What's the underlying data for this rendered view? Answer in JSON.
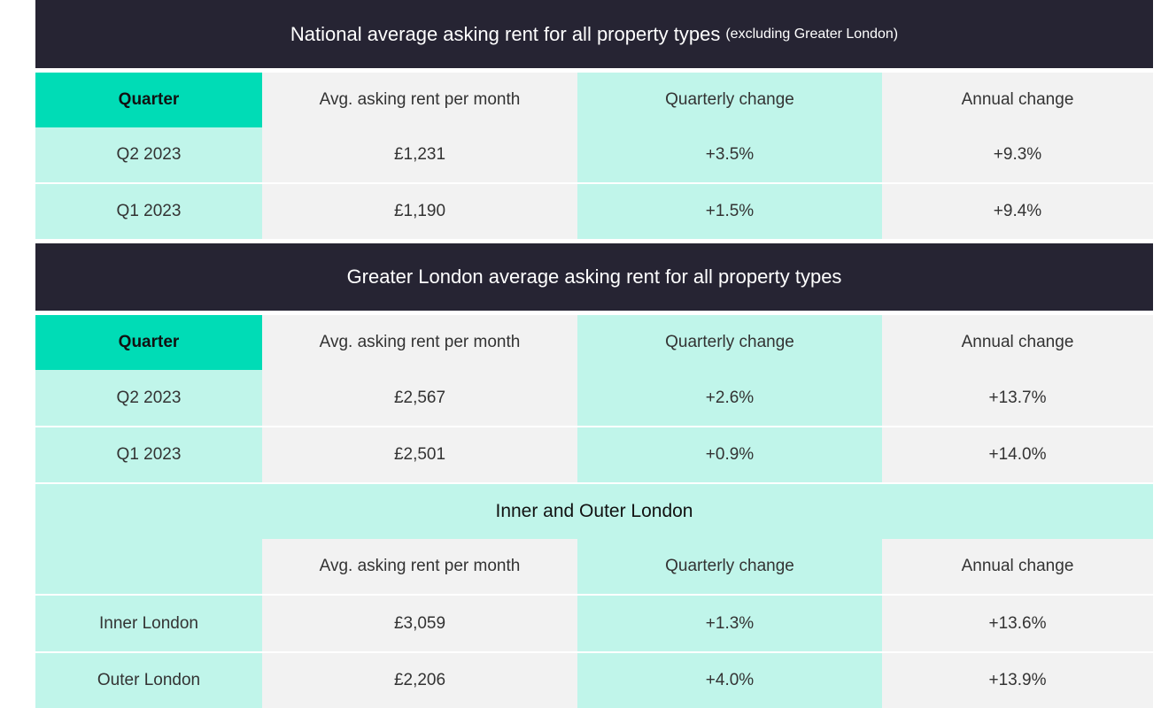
{
  "national": {
    "title_main": "National average asking rent for all property types",
    "title_note": "(excluding Greater London)",
    "columns": [
      "Quarter",
      "Avg. asking rent per month",
      "Quarterly change",
      "Annual change"
    ],
    "rows": [
      [
        "Q2 2023",
        "£1,231",
        "+3.5%",
        "+9.3%"
      ],
      [
        "Q1 2023",
        "£1,190",
        "+1.5%",
        "+9.4%"
      ]
    ]
  },
  "london": {
    "title": "Greater London average asking rent for all property types",
    "columns": [
      "Quarter",
      "Avg. asking rent per month",
      "Quarterly change",
      "Annual change"
    ],
    "rows": [
      [
        "Q2 2023",
        "£2,567",
        "+2.6%",
        "+13.7%"
      ],
      [
        "Q1 2023",
        "£2,501",
        "+0.9%",
        "+14.0%"
      ]
    ]
  },
  "inner_outer": {
    "title": "Inner and Outer London",
    "columns": [
      "",
      "Avg. asking rent per month",
      "Quarterly change",
      "Annual change"
    ],
    "rows": [
      [
        "Inner London",
        "£3,059",
        "+1.3%",
        "+13.6%"
      ],
      [
        "Outer London",
        "£2,206",
        "+4.0%",
        "+13.9%"
      ]
    ]
  },
  "colors": {
    "dark_header": "#262433",
    "teal_accent": "#00dcb6",
    "mint": "#c0f5ea",
    "grey": "#f2f2f2"
  }
}
